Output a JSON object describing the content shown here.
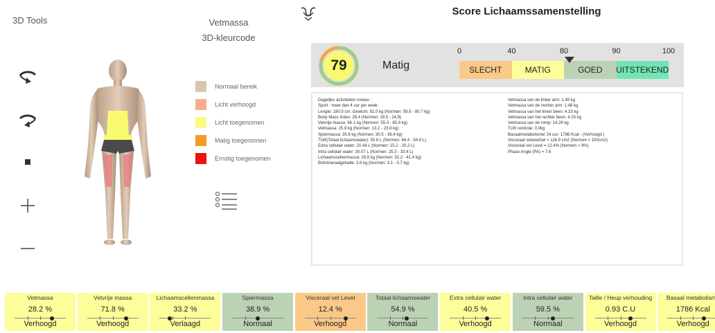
{
  "tools": {
    "title": "3D Tools"
  },
  "fat_panel": {
    "title_line1": "Vetmassa",
    "title_line2": "3D-kleurcode"
  },
  "legend": [
    {
      "label": "Normaal bereik",
      "color": "#d9c5b2"
    },
    {
      "label": "Licht verhoogd",
      "color": "#f7b08c"
    },
    {
      "label": "Licht toegenomen",
      "color": "#fafa80"
    },
    {
      "label": "Matig toegenomen",
      "color": "#f59a2a"
    },
    {
      "label": "Ernstig toegenomen",
      "color": "#ee1111"
    }
  ],
  "score": {
    "title": "Score Lichaamssamenstelling",
    "value": "79",
    "value_number": 79,
    "label": "Matig",
    "scale_ticks": [
      "0",
      "40",
      "80",
      "90",
      "100"
    ],
    "segments": [
      {
        "label": "SLECHT",
        "color": "#fbc987"
      },
      {
        "label": "MATIG",
        "color": "#fdfd9a"
      },
      {
        "label": "GOED",
        "color": "#bcd2b4"
      },
      {
        "label": "UITSTEKEND",
        "color": "#71e6b4"
      }
    ]
  },
  "details": {
    "left": [
      "Dagelijks activiteiten niveau :",
      "Sport : meer dan 4 uur per week",
      "Lengte: 180.0 cm; Gewicht: 92.0 kg (Normen: 59.9 - 80.7 kg)",
      "Body Mass Index: 28.4 (Normen: 18.5 - 24.9)",
      "Vetvrije massa: 66.1 kg (Normen: 55.3 - 65.9 kg)",
      "Vetmassa: 25.9 kg (Normen: 13.2 - 23.8 kg)",
      "Spiermassa: 35.8 kg (Normen: 30.5 - 36.4 kg)",
      "TLW(Totaal lichaamswater): 50.6 L (Normen: 46.4 - 54.8 L)",
      "Extra cellulair water: 20.48 L (Normen: 15.2 - 20.2 L)",
      "Intra cellulair water: 30.07 L (Normen: 25.3 - 33.4 L)",
      "Lichaamscellenmassa: 29.8 kg (Normen: 32.2 - 41.4 kg)",
      "Botmineraalgehalte: 3.6 kg (Normen: 3.1 - 3.7 kg)"
    ],
    "right": [
      "Vetmassa van de linker arm: 1.48 kg",
      "Vetmassa van de rechter arm: 1.48 kg",
      "Vetmassa van het linker been: 4.33 kg",
      "Vetmassa van het rechter been: 4.33 kg",
      "Vetmassa van de romp: 14.29 kg",
      "TLW controle: 0.0kg",
      "Basaalmetabolisme/ 24 uur: 1786 Kcal - (Verhoogd   )",
      "Visceraal vetweefsel = 116.9 cm2 (Normen < 100cm2)",
      "Visceraal vet Level = 12.4% (Normen < 9%)",
      "Phase Angle (PA) = 7.6"
    ]
  },
  "cards": [
    {
      "label": "Vetmassa",
      "value": "28.2 %",
      "status": "Verhoogd",
      "color": "#fdfd9a",
      "marker": 0.73
    },
    {
      "label": "Vetvrije massa",
      "value": "71.8 %",
      "status": "Verhoogd",
      "color": "#fdfd9a",
      "marker": 0.76
    },
    {
      "label": "Lichaamscellenmassa",
      "value": "33.2 %",
      "status": "Verlaagd",
      "color": "#fdfd9a",
      "marker": 0.2
    },
    {
      "label": "Spiermassa",
      "value": "38.9 %",
      "status": "Normaal",
      "color": "#bcd2b4",
      "marker": 0.5
    },
    {
      "label": "Visceraal vet Level",
      "value": "12.4 %",
      "status": "Verhoogd",
      "color": "#fbc987",
      "marker": 0.8
    },
    {
      "label": "Totaal lichaamswater",
      "value": "54.9 %",
      "status": "Normaal",
      "color": "#bcd2b4",
      "marker": 0.58
    },
    {
      "label": "Extra cellulair water",
      "value": "40.5 %",
      "status": "Verhoogd",
      "color": "#fdfd9a",
      "marker": 0.73
    },
    {
      "label": "Intra cellulair water",
      "value": "59.5 %",
      "status": "Normaal",
      "color": "#bcd2b4",
      "marker": 0.6
    },
    {
      "label": "Taille / Heup verhouding",
      "value": "0.93 C.U",
      "status": "Verhoogd",
      "color": "#fdfd9a",
      "marker": 0.7
    },
    {
      "label": "Basaal metabolisme",
      "value": "1786  Kcal",
      "status": "Verhoogd",
      "color": "#fdfd9a",
      "marker": 0.72
    }
  ]
}
